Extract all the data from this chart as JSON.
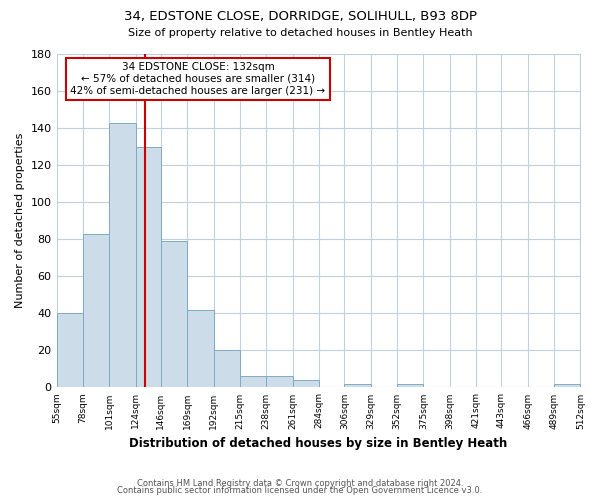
{
  "title": "34, EDSTONE CLOSE, DORRIDGE, SOLIHULL, B93 8DP",
  "subtitle": "Size of property relative to detached houses in Bentley Heath",
  "xlabel": "Distribution of detached houses by size in Bentley Heath",
  "ylabel": "Number of detached properties",
  "bar_edges": [
    55,
    78,
    101,
    124,
    146,
    169,
    192,
    215,
    238,
    261,
    284,
    306,
    329,
    352,
    375,
    398,
    421,
    443,
    466,
    489,
    512
  ],
  "bar_heights": [
    40,
    83,
    143,
    130,
    79,
    42,
    20,
    6,
    6,
    4,
    0,
    2,
    0,
    2,
    0,
    0,
    0,
    0,
    0,
    2
  ],
  "bar_color": "#ccdce8",
  "bar_edge_color": "#7faabf",
  "vline_x": 132,
  "vline_color": "#cc0000",
  "annotation_title": "34 EDSTONE CLOSE: 132sqm",
  "annotation_line1": "← 57% of detached houses are smaller (314)",
  "annotation_line2": "42% of semi-detached houses are larger (231) →",
  "annotation_box_color": "#ffffff",
  "annotation_box_edge": "#cc0000",
  "ylim": [
    0,
    180
  ],
  "yticks": [
    0,
    20,
    40,
    60,
    80,
    100,
    120,
    140,
    160,
    180
  ],
  "tick_labels": [
    "55sqm",
    "78sqm",
    "101sqm",
    "124sqm",
    "146sqm",
    "169sqm",
    "192sqm",
    "215sqm",
    "238sqm",
    "261sqm",
    "284sqm",
    "306sqm",
    "329sqm",
    "352sqm",
    "375sqm",
    "398sqm",
    "421sqm",
    "443sqm",
    "466sqm",
    "489sqm",
    "512sqm"
  ],
  "footer1": "Contains HM Land Registry data © Crown copyright and database right 2024.",
  "footer2": "Contains public sector information licensed under the Open Government Licence v3.0."
}
